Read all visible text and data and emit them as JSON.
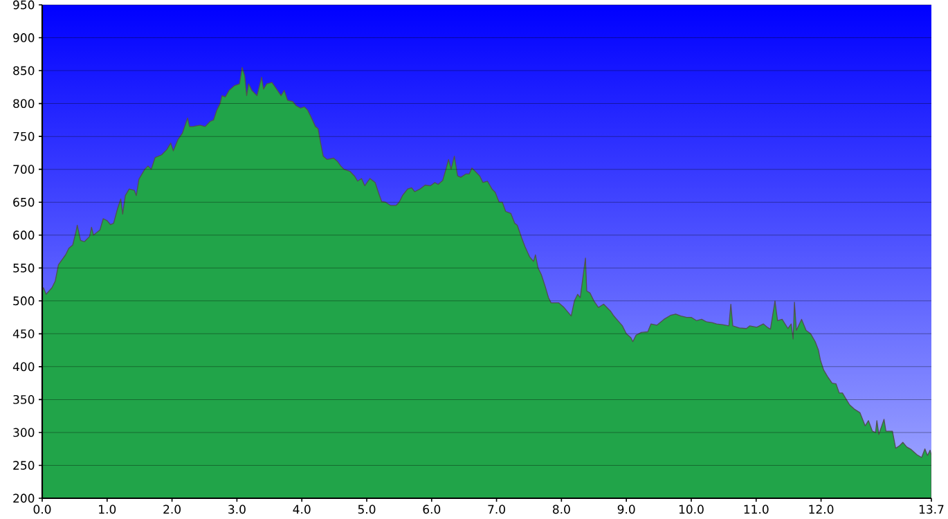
{
  "chart_data": {
    "type": "area",
    "color": "#21a449",
    "x": [
      0,
      0.02,
      0.06,
      0.15,
      0.2,
      0.25,
      0.36,
      0.41,
      0.47,
      0.52,
      0.54,
      0.59,
      0.65,
      0.73,
      0.76,
      0.79,
      0.89,
      0.94,
      1.0,
      1.05,
      1.1,
      1.16,
      1.21,
      1.24,
      1.28,
      1.34,
      1.42,
      1.45,
      1.49,
      1.58,
      1.63,
      1.68,
      1.74,
      1.84,
      1.92,
      1.98,
      2.02,
      2.09,
      2.16,
      2.24,
      2.27,
      2.32,
      2.43,
      2.51,
      2.59,
      2.64,
      2.69,
      2.74,
      2.77,
      2.82,
      2.88,
      2.96,
      3.04,
      3.08,
      3.12,
      3.15,
      3.18,
      3.23,
      3.31,
      3.38,
      3.41,
      3.46,
      3.54,
      3.59,
      3.68,
      3.73,
      3.78,
      3.86,
      3.91,
      3.98,
      4.04,
      4.09,
      4.14,
      4.21,
      4.25,
      4.29,
      4.33,
      4.39,
      4.49,
      4.55,
      4.6,
      4.65,
      4.74,
      4.81,
      4.86,
      4.92,
      4.97,
      5.05,
      5.13,
      5.18,
      5.23,
      5.29,
      5.37,
      5.45,
      5.5,
      5.55,
      5.63,
      5.69,
      5.74,
      5.82,
      5.9,
      5.98,
      6.05,
      6.1,
      6.17,
      6.22,
      6.26,
      6.3,
      6.35,
      6.4,
      6.45,
      6.53,
      6.58,
      6.62,
      6.66,
      6.74,
      6.79,
      6.86,
      6.93,
      6.98,
      7.04,
      7.09,
      7.14,
      7.22,
      7.28,
      7.32,
      7.39,
      7.44,
      7.51,
      7.57,
      7.6,
      7.64,
      7.69,
      7.75,
      7.8,
      7.84,
      7.88,
      7.96,
      8.04,
      8.15,
      8.2,
      8.25,
      8.29,
      8.37,
      8.39,
      8.44,
      8.5,
      8.57,
      8.65,
      8.7,
      8.76,
      8.8,
      8.87,
      8.94,
      9.0,
      9.07,
      9.1,
      9.15,
      9.23,
      9.33,
      9.38,
      9.47,
      9.58,
      9.68,
      9.76,
      9.84,
      9.93,
      10.0,
      10.08,
      10.16,
      10.24,
      10.32,
      10.39,
      10.48,
      10.58,
      10.61,
      10.64,
      10.74,
      10.85,
      10.9,
      11.01,
      11.11,
      11.17,
      11.22,
      11.29,
      11.33,
      11.4,
      11.49,
      11.54,
      11.57,
      11.59,
      11.62,
      11.7,
      11.77,
      11.84,
      11.91,
      11.96,
      11.99,
      12.04,
      12.1,
      12.17,
      12.23,
      12.28,
      12.33,
      12.39,
      12.44,
      12.52,
      12.6,
      12.68,
      12.73,
      12.79,
      12.84,
      12.86,
      12.89,
      12.97,
      13.0,
      13.1,
      13.15,
      13.21,
      13.26,
      13.32,
      13.39,
      13.48,
      13.55,
      13.6,
      13.64,
      13.68,
      13.7
    ],
    "values": [
      515,
      520,
      510,
      520,
      530,
      555,
      570,
      580,
      585,
      605,
      615,
      592,
      590,
      598,
      612,
      600,
      608,
      625,
      622,
      616,
      618,
      640,
      655,
      632,
      660,
      670,
      668,
      660,
      685,
      700,
      705,
      700,
      718,
      722,
      730,
      740,
      728,
      745,
      755,
      778,
      765,
      765,
      767,
      765,
      773,
      775,
      790,
      800,
      812,
      810,
      820,
      827,
      830,
      855,
      842,
      812,
      830,
      820,
      812,
      840,
      822,
      830,
      832,
      825,
      812,
      820,
      805,
      803,
      797,
      793,
      795,
      790,
      780,
      765,
      762,
      740,
      720,
      715,
      717,
      712,
      705,
      700,
      697,
      690,
      682,
      686,
      675,
      686,
      680,
      665,
      651,
      650,
      645,
      645,
      650,
      660,
      670,
      672,
      666,
      670,
      676,
      675,
      680,
      677,
      683,
      700,
      715,
      700,
      720,
      690,
      688,
      693,
      693,
      702,
      698,
      690,
      680,
      682,
      670,
      665,
      650,
      650,
      636,
      633,
      618,
      615,
      595,
      582,
      567,
      560,
      570,
      550,
      540,
      522,
      505,
      497,
      497,
      497,
      490,
      477,
      500,
      510,
      505,
      565,
      515,
      512,
      500,
      490,
      495,
      490,
      484,
      478,
      470,
      462,
      450,
      444,
      438,
      448,
      452,
      453,
      465,
      463,
      472,
      478,
      480,
      477,
      475,
      475,
      470,
      472,
      468,
      467,
      465,
      464,
      462,
      495,
      462,
      459,
      458,
      462,
      460,
      465,
      460,
      457,
      500,
      470,
      472,
      458,
      465,
      442,
      498,
      455,
      472,
      455,
      450,
      438,
      425,
      410,
      395,
      385,
      375,
      374,
      360,
      360,
      350,
      342,
      335,
      330,
      310,
      318,
      302,
      300,
      318,
      297,
      320,
      302,
      302,
      276,
      280,
      285,
      278,
      274,
      266,
      262,
      275,
      265,
      273,
      265
    ],
    "xlim": [
      0,
      13.7
    ],
    "ylim": [
      200,
      950
    ],
    "xticks": [
      {
        "value": 0,
        "label": "0.0"
      },
      {
        "value": 1,
        "label": "1.0"
      },
      {
        "value": 2,
        "label": "2.0"
      },
      {
        "value": 3,
        "label": "3.0"
      },
      {
        "value": 4,
        "label": "4.0"
      },
      {
        "value": 5,
        "label": "5.0"
      },
      {
        "value": 6,
        "label": "6.0"
      },
      {
        "value": 7,
        "label": "7.0"
      },
      {
        "value": 8,
        "label": "8.0"
      },
      {
        "value": 9,
        "label": "9.0"
      },
      {
        "value": 10,
        "label": "10.0"
      },
      {
        "value": 11,
        "label": "11.0"
      },
      {
        "value": 12,
        "label": "12.0"
      },
      13.7
    ],
    "yticks": [
      200,
      250,
      300,
      350,
      400,
      450,
      500,
      550,
      600,
      650,
      700,
      750,
      800,
      850,
      900,
      950
    ],
    "grid": "y"
  }
}
